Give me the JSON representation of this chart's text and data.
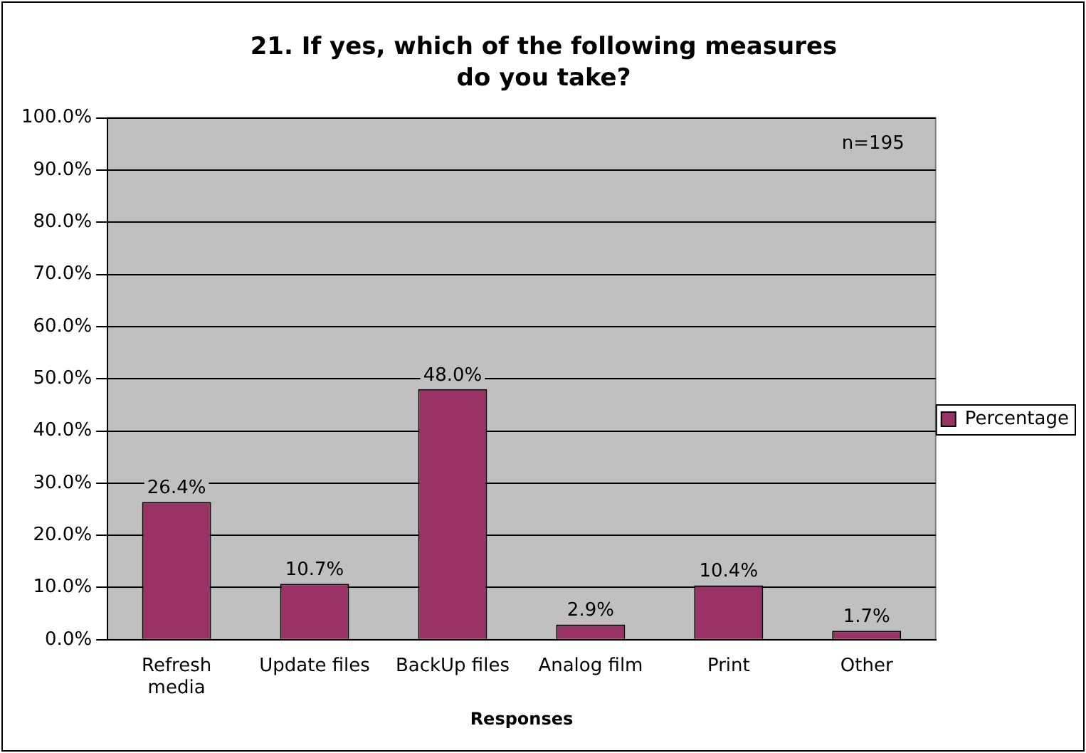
{
  "chart_data": {
    "type": "bar",
    "title": "21. If yes, which of the following measures do you take?",
    "xlabel": "Responses",
    "categories": [
      "Refresh media",
      "Update files",
      "BackUp files",
      "Analog film",
      "Print",
      "Other"
    ],
    "series": [
      {
        "name": "Percentage",
        "color": "#993366",
        "values": [
          26.4,
          10.7,
          48.0,
          2.9,
          10.4,
          1.7
        ],
        "value_labels": [
          "26.4%",
          "10.7%",
          "48.0%",
          "2.9%",
          "10.4%",
          "1.7%"
        ]
      }
    ],
    "ylim": [
      0,
      100
    ],
    "yticks": [
      {
        "value": 0,
        "label": "0.0%"
      },
      {
        "value": 10,
        "label": "10.0%"
      },
      {
        "value": 20,
        "label": "20.0%"
      },
      {
        "value": 30,
        "label": "30.0%"
      },
      {
        "value": 40,
        "label": "40.0%"
      },
      {
        "value": 50,
        "label": "50.0%"
      },
      {
        "value": 60,
        "label": "60.0%"
      },
      {
        "value": 70,
        "label": "70.0%"
      },
      {
        "value": 80,
        "label": "80.0%"
      },
      {
        "value": 90,
        "label": "90.0%"
      },
      {
        "value": 100,
        "label": "100.0%"
      }
    ],
    "grid": "y",
    "legend": "right",
    "annotations": [
      "n=195"
    ]
  }
}
